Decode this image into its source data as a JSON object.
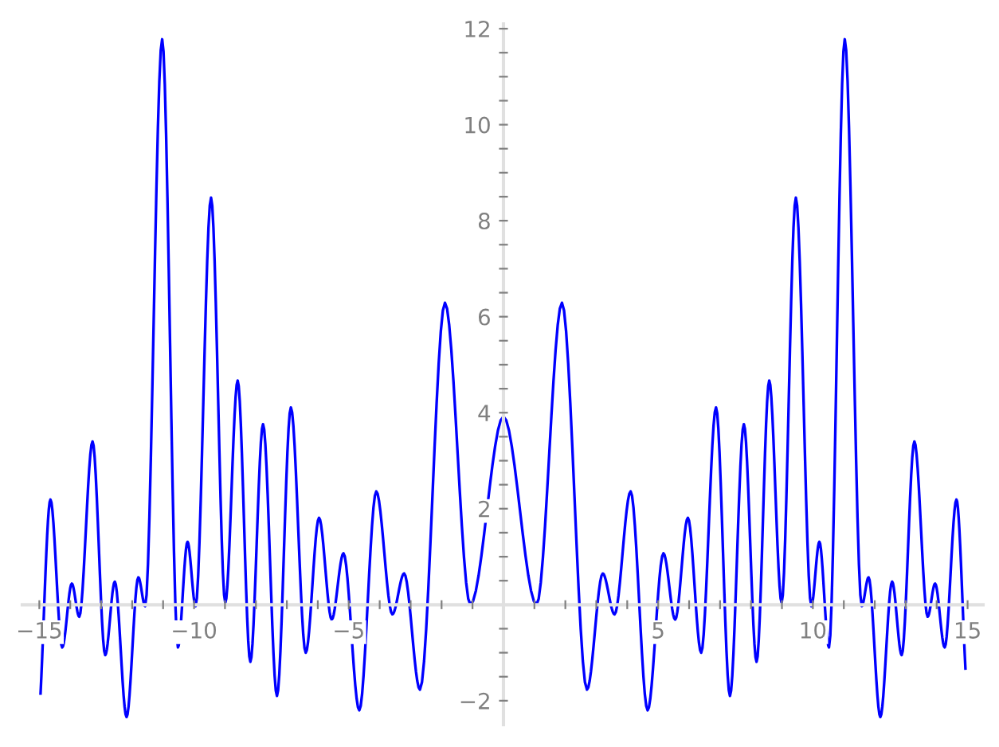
{
  "chart_data": {
    "type": "line",
    "series": [
      {
        "color": "#0000ff",
        "x": [
          -14.96,
          -14.64,
          -14.26,
          -13.95,
          -13.71,
          -13.28,
          -12.87,
          -12.56,
          -12.18,
          -11.8,
          -11.58,
          -11.03,
          -10.52,
          -10.21,
          -9.95,
          -9.45,
          -8.99,
          -8.59,
          -8.18,
          -7.77,
          -7.32,
          -6.87,
          -6.39,
          -5.96,
          -5.55,
          -5.17,
          -4.66,
          -4.11,
          -3.59,
          -3.21,
          -2.7,
          -1.89,
          -1.07,
          0,
          1.07,
          1.89,
          2.7,
          3.21,
          3.59,
          4.11,
          4.66,
          5.17,
          5.55,
          5.96,
          6.39,
          6.87,
          7.32,
          7.77,
          8.18,
          8.59,
          8.99,
          9.45,
          9.95,
          10.21,
          10.52,
          11.03,
          11.58,
          11.8,
          12.18,
          12.56,
          12.87,
          13.28,
          13.71,
          13.95,
          14.26,
          14.64,
          14.93
        ],
        "values": [
          -1.85,
          2.19,
          -0.89,
          0.44,
          -0.25,
          3.4,
          -1.05,
          0.48,
          -2.34,
          0.57,
          -0.03,
          11.78,
          -0.89,
          1.31,
          -0.03,
          8.48,
          0.04,
          4.67,
          -1.19,
          3.76,
          -1.9,
          4.11,
          -1.0,
          1.81,
          -0.31,
          1.07,
          -2.2,
          2.36,
          -0.2,
          0.65,
          -1.77,
          6.29,
          0.0,
          3.92,
          0.0,
          6.29,
          -1.77,
          0.65,
          -0.2,
          2.36,
          -2.2,
          1.07,
          -0.31,
          1.81,
          -1.0,
          4.11,
          -1.9,
          3.76,
          -1.19,
          4.67,
          0.04,
          8.48,
          -0.03,
          1.31,
          -0.89,
          11.78,
          -0.03,
          0.57,
          -2.34,
          0.48,
          -1.05,
          3.4,
          -0.25,
          0.44,
          -0.89,
          2.19,
          -1.33
        ]
      }
    ],
    "xlim": [
      -15.55,
      15.5
    ],
    "ylim": [
      -2.5,
      12.1
    ],
    "xticks": [
      -15,
      -10,
      -5,
      5,
      10,
      15,
      {
        "value": -14,
        "label": null
      },
      {
        "value": -13,
        "label": null
      },
      {
        "value": -12,
        "label": null
      },
      {
        "value": -11,
        "label": null
      },
      {
        "value": -9,
        "label": null
      },
      {
        "value": -8,
        "label": null
      },
      {
        "value": -7,
        "label": null
      },
      {
        "value": -6,
        "label": null
      },
      {
        "value": -4,
        "label": null
      },
      {
        "value": -3,
        "label": null
      },
      {
        "value": -2,
        "label": null
      },
      {
        "value": -1,
        "label": null
      },
      {
        "value": 1,
        "label": null
      },
      {
        "value": 2,
        "label": null
      },
      {
        "value": 3,
        "label": null
      },
      {
        "value": 4,
        "label": null
      },
      {
        "value": 6,
        "label": null
      },
      {
        "value": 7,
        "label": null
      },
      {
        "value": 8,
        "label": null
      },
      {
        "value": 9,
        "label": null
      },
      {
        "value": 11,
        "label": null
      },
      {
        "value": 12,
        "label": null
      },
      {
        "value": 13,
        "label": null
      },
      {
        "value": 14,
        "label": null
      }
    ],
    "yticks": [
      -2,
      2,
      4,
      6,
      8,
      10,
      12,
      {
        "value": -1.5,
        "label": null
      },
      {
        "value": -1,
        "label": null
      },
      {
        "value": -0.5,
        "label": null
      },
      {
        "value": 0.5,
        "label": null
      },
      {
        "value": 1,
        "label": null
      },
      {
        "value": 1.5,
        "label": null
      },
      {
        "value": 2.5,
        "label": null
      },
      {
        "value": 3,
        "label": null
      },
      {
        "value": 3.5,
        "label": null
      },
      {
        "value": 4.5,
        "label": null
      },
      {
        "value": 5,
        "label": null
      },
      {
        "value": 5.5,
        "label": null
      },
      {
        "value": 6.5,
        "label": null
      },
      {
        "value": 7,
        "label": null
      },
      {
        "value": 7.5,
        "label": null
      },
      {
        "value": 8.5,
        "label": null
      },
      {
        "value": 9,
        "label": null
      },
      {
        "value": 9.5,
        "label": null
      },
      {
        "value": 10.5,
        "label": null
      },
      {
        "value": 11,
        "label": null
      },
      {
        "value": 11.5,
        "label": null
      }
    ],
    "grid": false,
    "legend": false,
    "marker": "none",
    "line_style": "solid"
  }
}
